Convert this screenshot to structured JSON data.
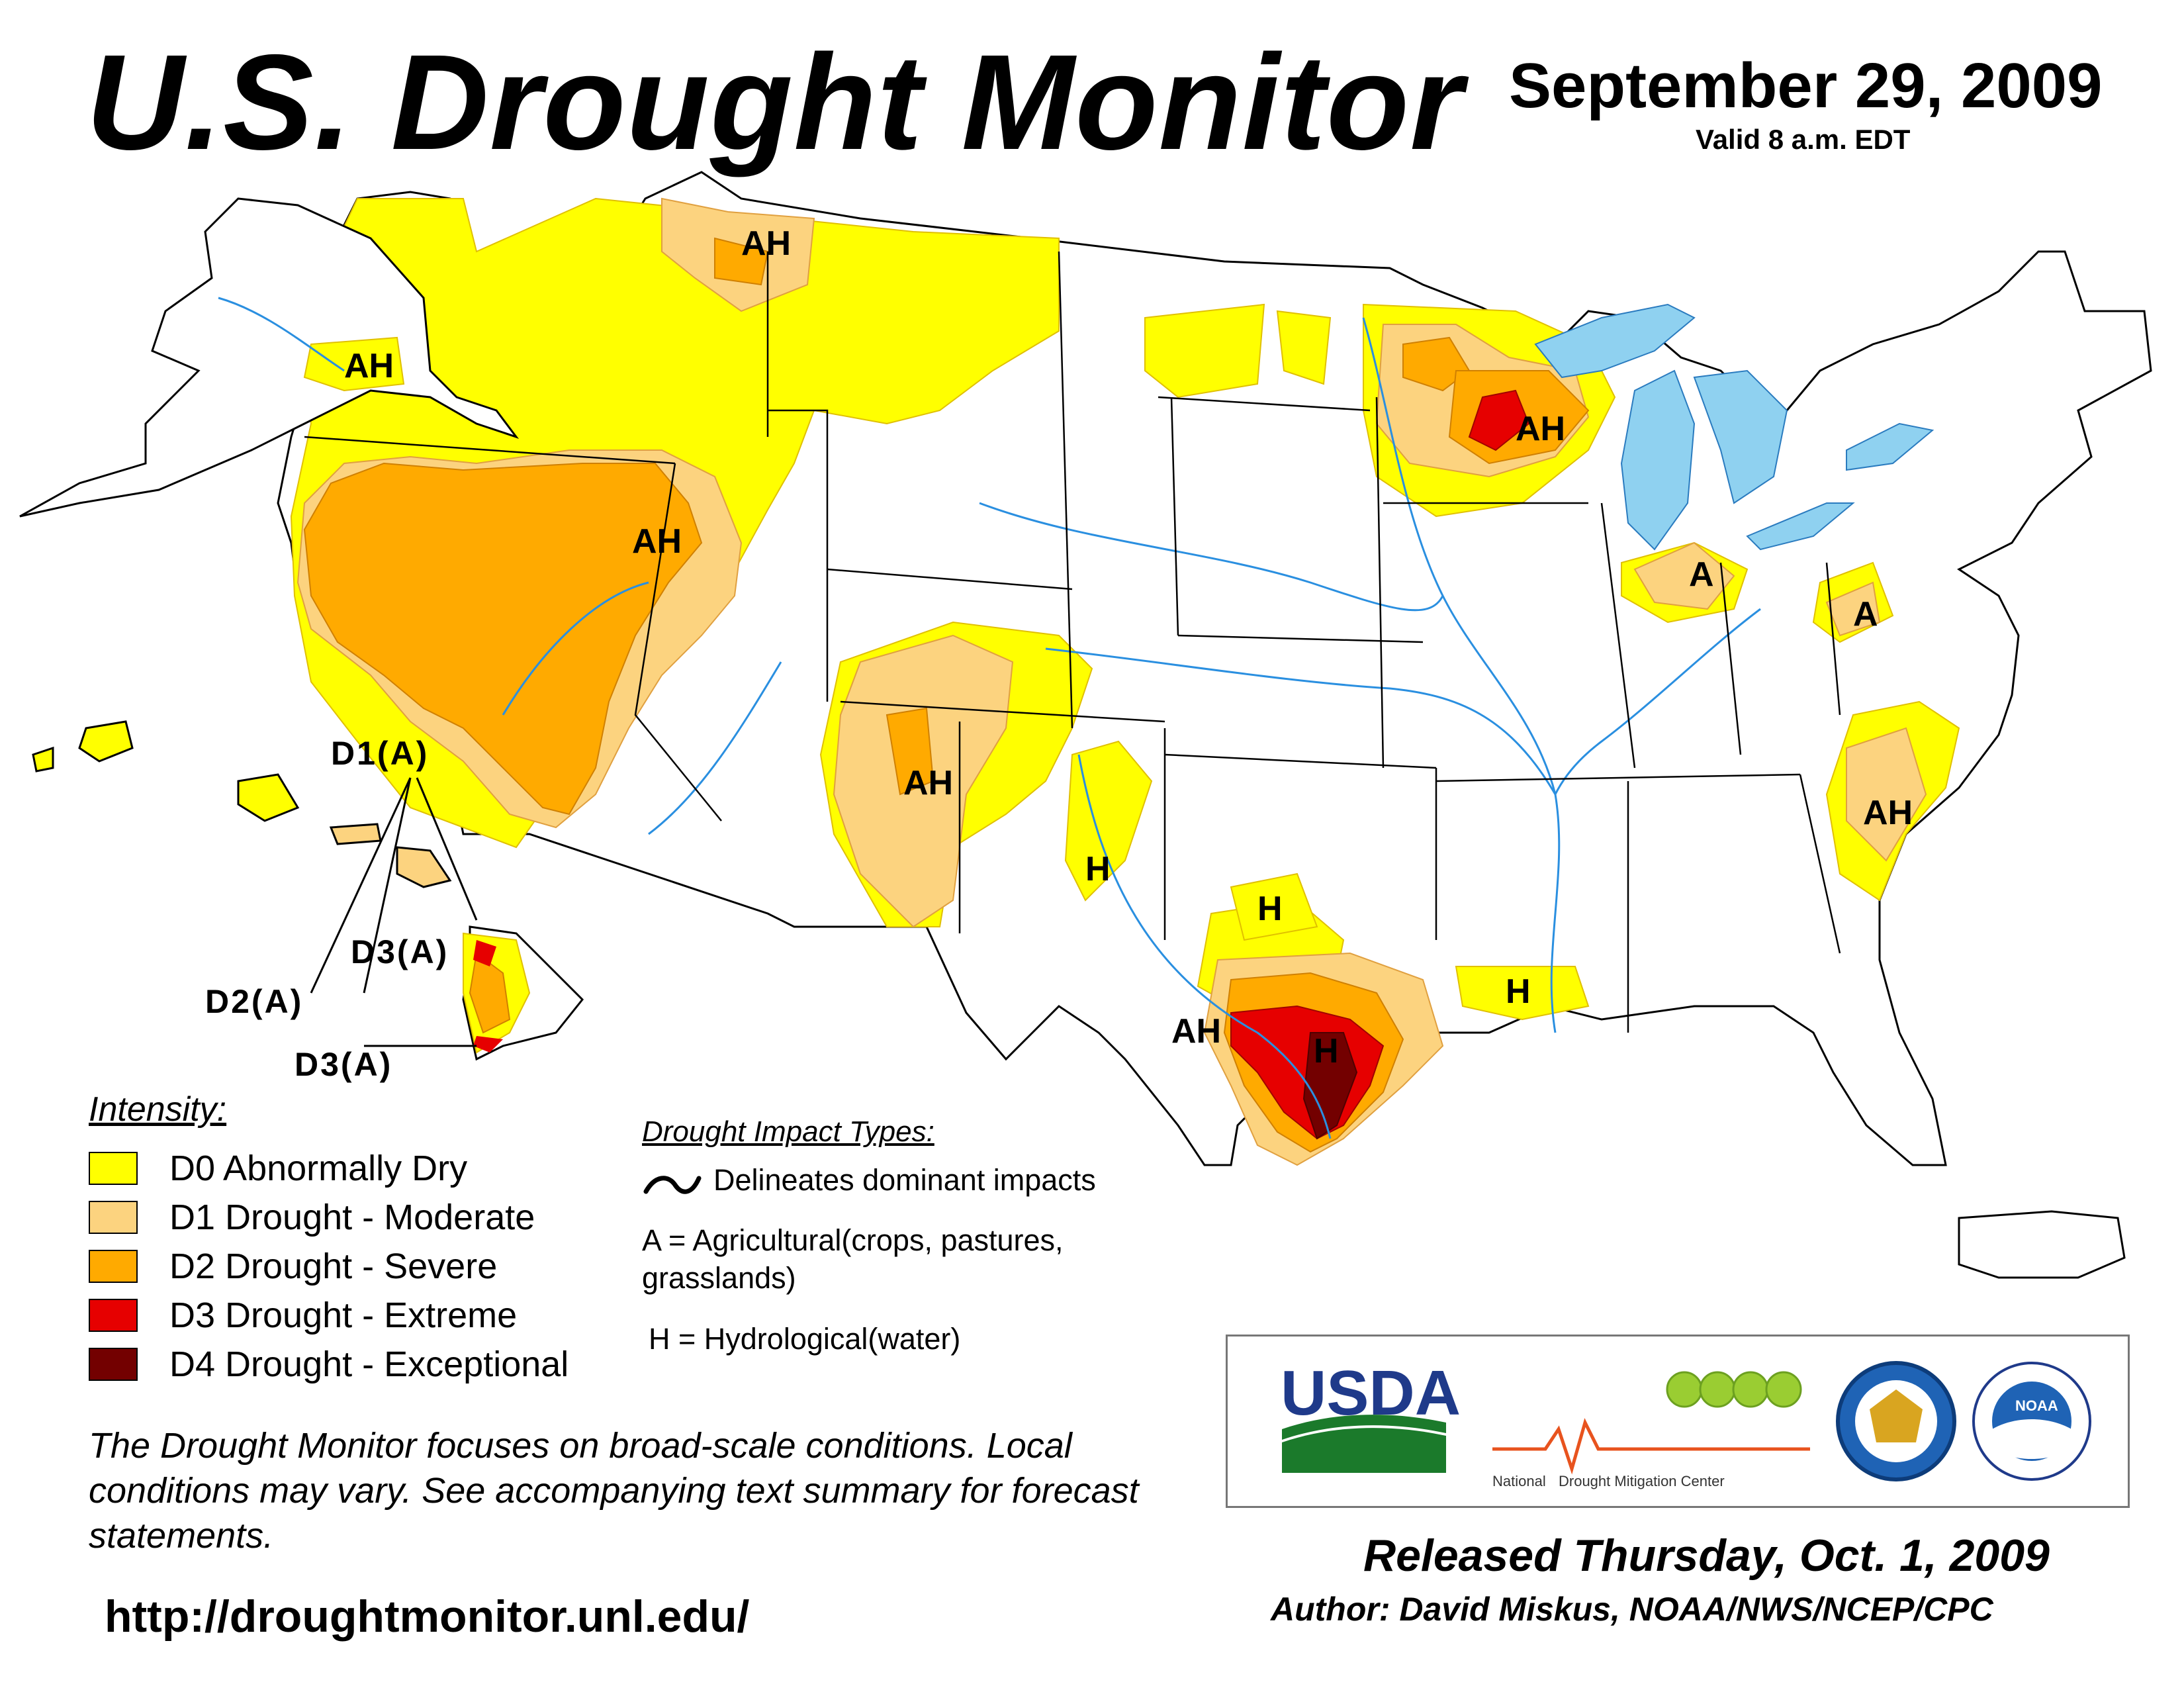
{
  "header": {
    "title": "U.S. Drought Monitor",
    "date": "September 29, 2009",
    "valid": "Valid 8 a.m. EDT"
  },
  "map": {
    "region_labels": [
      "AH",
      "AH",
      "AH",
      "AH",
      "AH",
      "AH",
      "AH",
      "A",
      "A",
      "H",
      "H",
      "H",
      "H"
    ],
    "hawaii_labels": [
      "D1(A)",
      "D3(A)",
      "D2(A)",
      "D3(A)"
    ]
  },
  "legend": {
    "title": "Intensity:",
    "items": [
      {
        "label": "D0 Abnormally Dry",
        "color": "#ffff00"
      },
      {
        "label": "D1 Drought - Moderate",
        "color": "#fcd37f"
      },
      {
        "label": "D2 Drought - Severe",
        "color": "#ffaa00"
      },
      {
        "label": "D3 Drought - Extreme",
        "color": "#e60000"
      },
      {
        "label": "D4 Drought - Exceptional",
        "color": "#730000"
      }
    ]
  },
  "impacts": {
    "title": "Drought Impact Types:",
    "line": "Delineates dominant impacts",
    "a": "A = Agricultural(crops, pastures, grasslands)",
    "h": "H = Hydrological(water)"
  },
  "note": "The Drought Monitor focuses on broad-scale conditions. Local conditions may vary. See accompanying text summary for forecast statements.",
  "url": "http://droughtmonitor.unl.edu/",
  "logos": {
    "usda": "USDA",
    "ndmc_1": "National",
    "ndmc_2": "Drought Mitigation Center",
    "noaa": "NOAA"
  },
  "footer": {
    "released": "Released Thursday, Oct. 1, 2009",
    "author": "Author: David Miskus, NOAA/NWS/NCEP/CPC"
  }
}
